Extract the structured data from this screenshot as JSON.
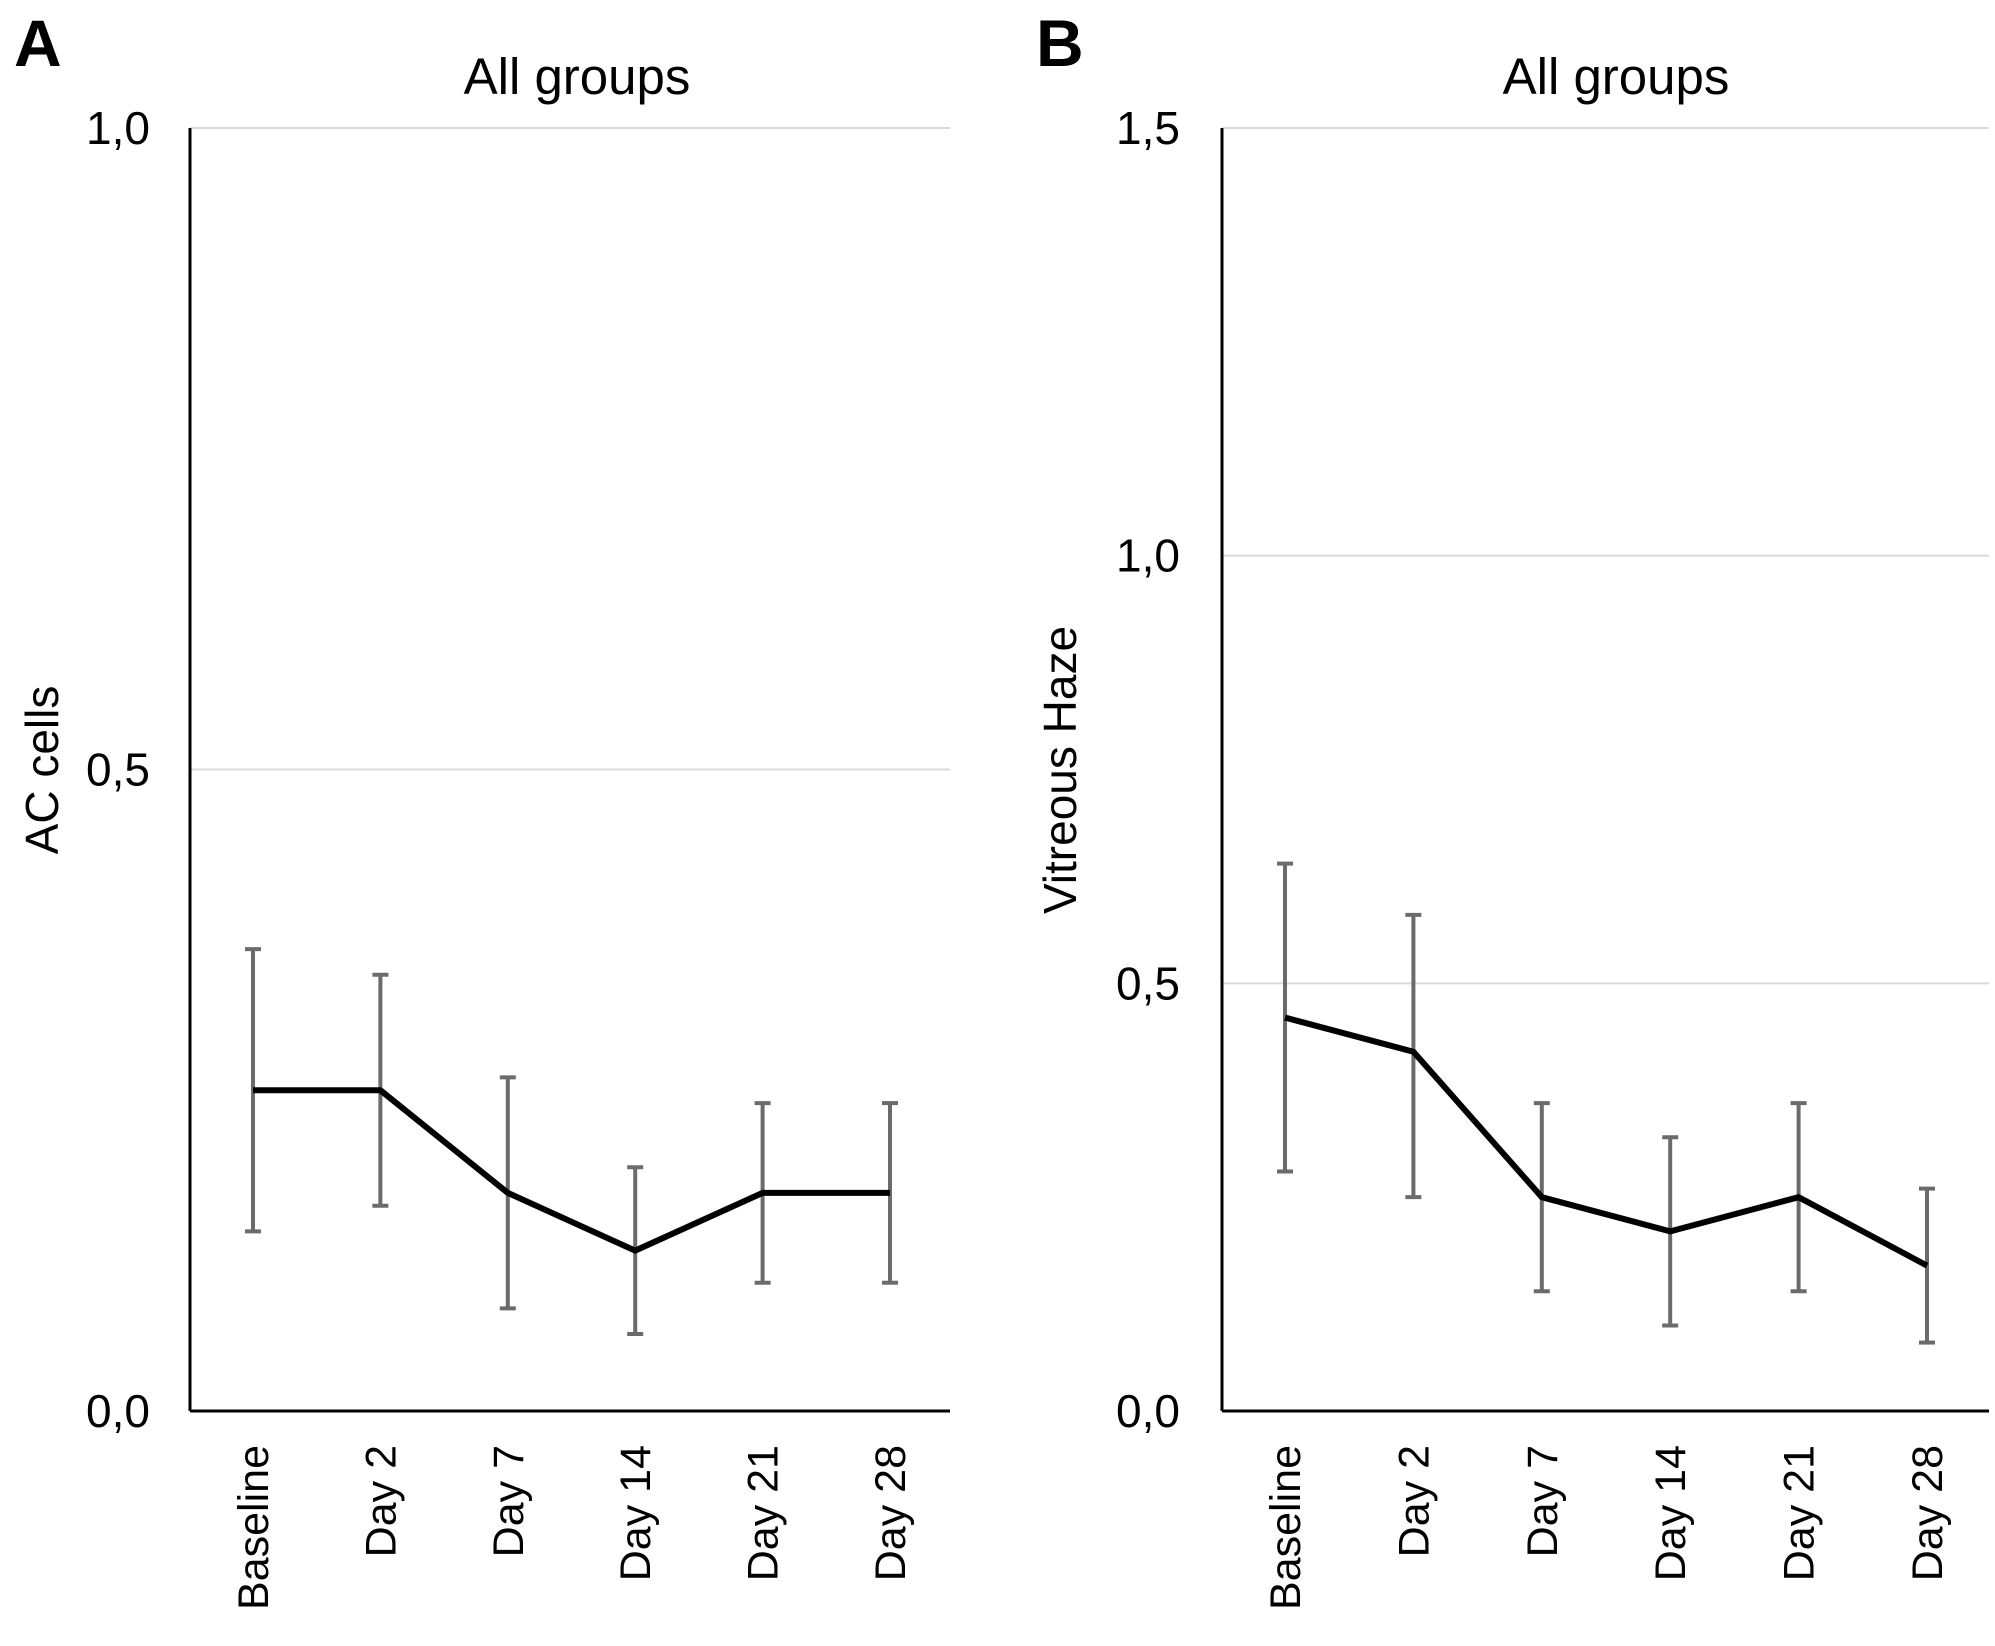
{
  "chart_data": [
    {
      "panel": "A",
      "type": "line",
      "title": "All groups",
      "xlabel": "",
      "ylabel": "AC cells",
      "categories": [
        "Baseline",
        "Day 2",
        "Day 7",
        "Day 14",
        "Day 21",
        "Day 28"
      ],
      "series": [
        {
          "name": "All groups",
          "values": [
            0.25,
            0.25,
            0.17,
            0.125,
            0.17,
            0.17
          ],
          "error_low": [
            0.14,
            0.16,
            0.08,
            0.06,
            0.1,
            0.1
          ],
          "error_high": [
            0.36,
            0.34,
            0.26,
            0.19,
            0.24,
            0.24
          ]
        }
      ],
      "yticks": [
        0,
        0.5,
        1.0
      ],
      "ytick_labels": [
        "0,0",
        "0,5",
        "1,0"
      ],
      "ylim": [
        0,
        1.0
      ],
      "grid": true,
      "colors": {
        "line": "#000000",
        "error": "#6b6b6b",
        "grid": "#d9d9d9"
      }
    },
    {
      "panel": "B",
      "type": "line",
      "title": "All groups",
      "xlabel": "",
      "ylabel": "Vitreous Haze",
      "categories": [
        "Baseline",
        "Day 2",
        "Day 7",
        "Day 14",
        "Day 21",
        "Day 28"
      ],
      "series": [
        {
          "name": "All groups",
          "values": [
            0.46,
            0.42,
            0.25,
            0.21,
            0.25,
            0.17
          ],
          "error_low": [
            0.28,
            0.25,
            0.14,
            0.1,
            0.14,
            0.08
          ],
          "error_high": [
            0.64,
            0.58,
            0.36,
            0.32,
            0.36,
            0.26
          ]
        }
      ],
      "yticks": [
        0,
        0.5,
        1.0,
        1.5
      ],
      "ytick_labels": [
        "0,0",
        "0,5",
        "1,0",
        "1,5"
      ],
      "ylim": [
        0,
        1.5
      ],
      "grid": true,
      "colors": {
        "line": "#000000",
        "error": "#6b6b6b",
        "grid": "#d9d9d9"
      }
    }
  ]
}
